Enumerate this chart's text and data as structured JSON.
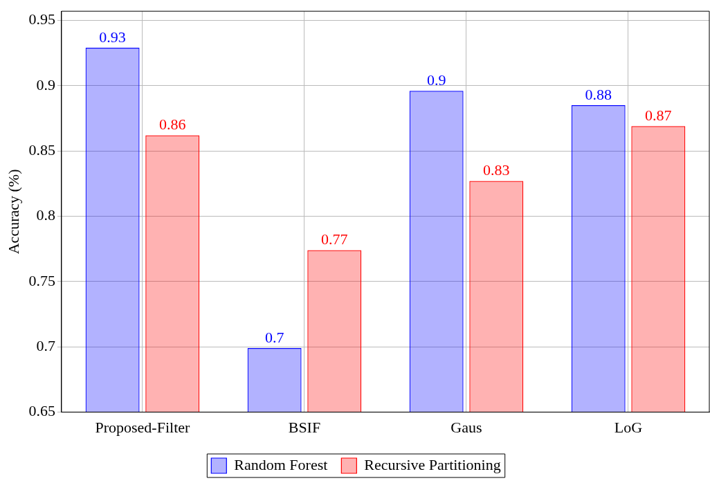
{
  "chart_data": {
    "type": "bar",
    "ylabel": "Accuracy (%)",
    "categories": [
      "Proposed-Filter",
      "BSIF",
      "Gaus",
      "LoG"
    ],
    "series": [
      {
        "name": "Random Forest",
        "color": "#0000ff",
        "values": [
          0.929,
          0.699,
          0.896,
          0.885
        ],
        "value_labels": [
          "0.93",
          "0.7",
          "0.9",
          "0.88"
        ]
      },
      {
        "name": "Recursive Partitioning",
        "color": "#ff0000",
        "values": [
          0.862,
          0.774,
          0.827,
          0.869
        ],
        "value_labels": [
          "0.86",
          "0.77",
          "0.83",
          "0.87"
        ]
      }
    ],
    "ylim": [
      0.65,
      0.957
    ],
    "yticks": [
      0.65,
      0.7,
      0.75,
      0.8,
      0.85,
      0.9,
      0.95
    ],
    "grid": true,
    "legend": "bottom"
  }
}
